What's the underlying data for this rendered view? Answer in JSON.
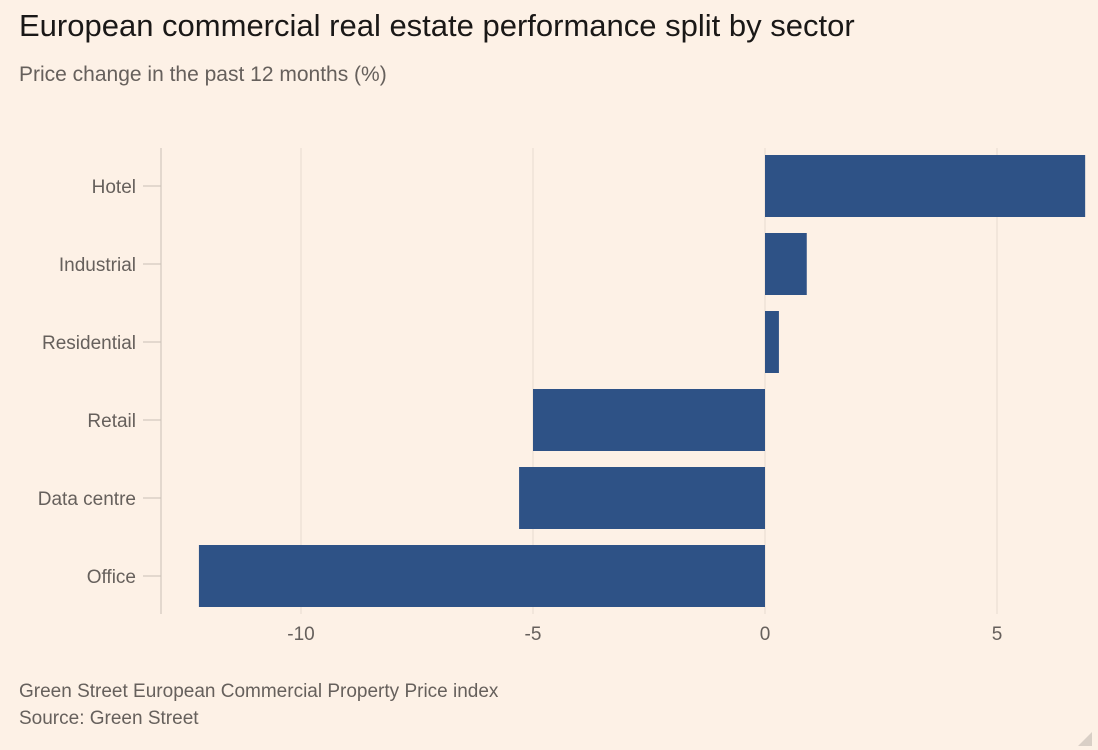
{
  "header": {
    "title": "European commercial real estate performance split by sector",
    "subtitle": "Price change in the past 12 months (%)"
  },
  "footer": {
    "note": "Green Street European Commercial Property Price index",
    "source": "Source: Green Street"
  },
  "colors": {
    "background": "#FDF1E6",
    "bar": "#2E5286",
    "grid": "#E6DAD0",
    "axis": "#C9BFB6",
    "text": "#66605C"
  },
  "chart_data": {
    "type": "bar",
    "orientation": "horizontal",
    "title": "European commercial real estate performance split by sector",
    "subtitle": "Price change in the past 12 months (%)",
    "xlabel": "",
    "ylabel": "",
    "categories": [
      "Hotel",
      "Industrial",
      "Residential",
      "Retail",
      "Data centre",
      "Office"
    ],
    "values": [
      6.9,
      0.9,
      0.3,
      -5.0,
      -5.3,
      -12.2
    ],
    "xlim": [
      -13.0,
      7.0
    ],
    "xticks": [
      -10,
      -5,
      0,
      5
    ],
    "xtick_labels": [
      "-10",
      "-5",
      "0",
      "5"
    ],
    "grid": true,
    "legend": "none"
  }
}
